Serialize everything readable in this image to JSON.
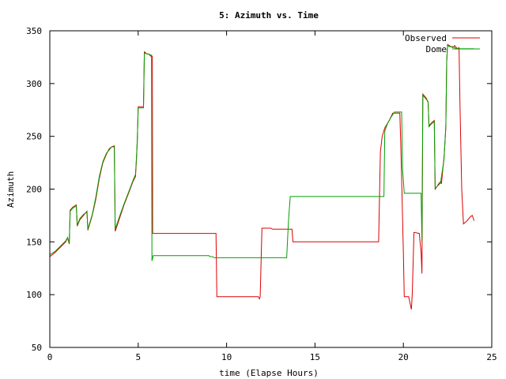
{
  "chart_data": {
    "type": "line",
    "title": "5: Azimuth vs. Time",
    "xlabel": "time (Elapse Hours)",
    "ylabel": "Azimuth",
    "xlim": [
      0,
      25
    ],
    "ylim": [
      50,
      350
    ],
    "xticks": [
      0,
      5,
      10,
      15,
      20,
      25
    ],
    "yticks": [
      50,
      100,
      150,
      200,
      250,
      300,
      350
    ],
    "grid": false,
    "legend": "top-right",
    "series": [
      {
        "name": "Observed",
        "color": "#dd0000",
        "points": [
          [
            0,
            136
          ],
          [
            0.3,
            140
          ],
          [
            0.6,
            145
          ],
          [
            0.9,
            150
          ],
          [
            1.0,
            154
          ],
          [
            1.1,
            148
          ],
          [
            1.15,
            180
          ],
          [
            1.3,
            183
          ],
          [
            1.5,
            185
          ],
          [
            1.55,
            165
          ],
          [
            1.7,
            171
          ],
          [
            1.9,
            175
          ],
          [
            2.1,
            179
          ],
          [
            2.15,
            161
          ],
          [
            2.4,
            175
          ],
          [
            2.6,
            190
          ],
          [
            2.8,
            210
          ],
          [
            3.0,
            225
          ],
          [
            3.2,
            233
          ],
          [
            3.35,
            238
          ],
          [
            3.5,
            240
          ],
          [
            3.65,
            241
          ],
          [
            3.7,
            160
          ],
          [
            3.9,
            170
          ],
          [
            4.2,
            185
          ],
          [
            4.5,
            198
          ],
          [
            4.7,
            207
          ],
          [
            4.85,
            212
          ],
          [
            4.9,
            228
          ],
          [
            4.95,
            246
          ],
          [
            5.0,
            278
          ],
          [
            5.3,
            278
          ],
          [
            5.35,
            330
          ],
          [
            5.5,
            328
          ],
          [
            5.6,
            328
          ],
          [
            5.7,
            326
          ],
          [
            5.8,
            326
          ],
          [
            5.82,
            158
          ],
          [
            9.4,
            158
          ],
          [
            9.45,
            98
          ],
          [
            11.8,
            98
          ],
          [
            11.85,
            96
          ],
          [
            11.9,
            98
          ],
          [
            12.0,
            163
          ],
          [
            12.5,
            163
          ],
          [
            12.6,
            162
          ],
          [
            13.7,
            162
          ],
          [
            13.75,
            150
          ],
          [
            18.6,
            150
          ],
          [
            18.7,
            235
          ],
          [
            18.8,
            250
          ],
          [
            18.95,
            258
          ],
          [
            19.2,
            265
          ],
          [
            19.4,
            272
          ],
          [
            19.8,
            272
          ],
          [
            19.85,
            245
          ],
          [
            19.9,
            210
          ],
          [
            20.0,
            140
          ],
          [
            20.05,
            98
          ],
          [
            20.3,
            98
          ],
          [
            20.45,
            86
          ],
          [
            20.5,
            100
          ],
          [
            20.6,
            159
          ],
          [
            20.9,
            158
          ],
          [
            21.0,
            140
          ],
          [
            21.05,
            120
          ],
          [
            21.1,
            290
          ],
          [
            21.3,
            286
          ],
          [
            21.4,
            282
          ],
          [
            21.45,
            260
          ],
          [
            21.6,
            263
          ],
          [
            21.75,
            265
          ],
          [
            21.8,
            200
          ],
          [
            22.0,
            205
          ],
          [
            22.1,
            207
          ],
          [
            22.15,
            205
          ],
          [
            22.3,
            230
          ],
          [
            22.4,
            258
          ],
          [
            22.45,
            320
          ],
          [
            22.5,
            337
          ],
          [
            22.6,
            336
          ],
          [
            22.8,
            334
          ],
          [
            22.9,
            336
          ],
          [
            23.05,
            333
          ],
          [
            23.15,
            334
          ],
          [
            23.2,
            280
          ],
          [
            23.3,
            200
          ],
          [
            23.4,
            167
          ],
          [
            23.6,
            170
          ],
          [
            23.8,
            174
          ],
          [
            23.9,
            175
          ],
          [
            24.0,
            170
          ]
        ]
      },
      {
        "name": "Dome",
        "color": "#00a000",
        "points": [
          [
            0,
            138
          ],
          [
            0.3,
            141
          ],
          [
            0.6,
            146
          ],
          [
            0.9,
            151
          ],
          [
            1.0,
            154
          ],
          [
            1.1,
            149
          ],
          [
            1.15,
            179
          ],
          [
            1.3,
            182
          ],
          [
            1.5,
            184
          ],
          [
            1.55,
            166
          ],
          [
            1.7,
            172
          ],
          [
            1.9,
            176
          ],
          [
            2.1,
            178
          ],
          [
            2.15,
            162
          ],
          [
            2.4,
            176
          ],
          [
            2.6,
            192
          ],
          [
            2.8,
            212
          ],
          [
            3.0,
            226
          ],
          [
            3.2,
            234
          ],
          [
            3.35,
            237
          ],
          [
            3.5,
            240
          ],
          [
            3.65,
            240
          ],
          [
            3.7,
            162
          ],
          [
            3.9,
            172
          ],
          [
            4.2,
            186
          ],
          [
            4.5,
            199
          ],
          [
            4.7,
            208
          ],
          [
            4.85,
            214
          ],
          [
            4.9,
            230
          ],
          [
            4.95,
            248
          ],
          [
            5.0,
            277
          ],
          [
            5.3,
            277
          ],
          [
            5.35,
            329
          ],
          [
            5.5,
            328
          ],
          [
            5.6,
            328
          ],
          [
            5.7,
            327
          ],
          [
            5.75,
            327
          ],
          [
            5.78,
            132
          ],
          [
            5.85,
            137
          ],
          [
            9.0,
            137
          ],
          [
            9.05,
            136
          ],
          [
            9.2,
            136
          ],
          [
            9.3,
            135
          ],
          [
            13.4,
            135
          ],
          [
            13.5,
            170
          ],
          [
            13.6,
            193
          ],
          [
            18.9,
            193
          ],
          [
            18.95,
            255
          ],
          [
            19.1,
            262
          ],
          [
            19.3,
            268
          ],
          [
            19.5,
            273
          ],
          [
            19.9,
            273
          ],
          [
            19.95,
            220
          ],
          [
            20.05,
            196
          ],
          [
            21.0,
            196
          ],
          [
            21.05,
            150
          ],
          [
            21.1,
            289
          ],
          [
            21.3,
            285
          ],
          [
            21.4,
            283
          ],
          [
            21.45,
            259
          ],
          [
            21.6,
            262
          ],
          [
            21.75,
            264
          ],
          [
            21.8,
            201
          ],
          [
            22.0,
            204
          ],
          [
            22.1,
            206
          ],
          [
            22.3,
            228
          ],
          [
            22.4,
            260
          ],
          [
            22.45,
            322
          ],
          [
            22.5,
            336
          ],
          [
            22.6,
            335
          ],
          [
            22.8,
            335
          ],
          [
            23.0,
            333
          ],
          [
            23.1,
            333
          ],
          [
            24.0,
            333
          ]
        ]
      }
    ]
  }
}
